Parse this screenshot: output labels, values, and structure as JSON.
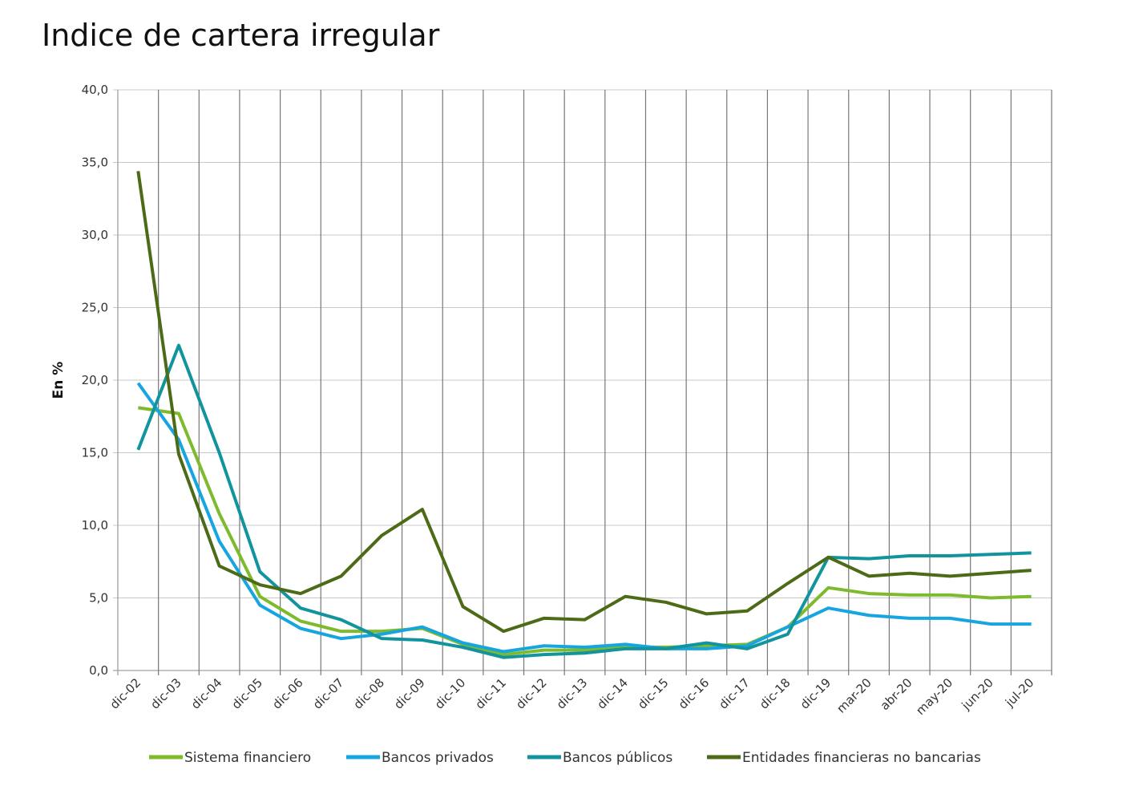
{
  "chart_data": {
    "type": "line",
    "title": "Indice de cartera irregular",
    "xlabel": "",
    "ylabel": "En %",
    "ylim": [
      0,
      40
    ],
    "yticks": [
      "0,0",
      "5,0",
      "10,0",
      "15,0",
      "20,0",
      "25,0",
      "30,0",
      "35,0",
      "40,0"
    ],
    "grid": "horizontal and vertical",
    "legend_position": "bottom",
    "categories": [
      "dic-02",
      "dic-03",
      "dic-04",
      "dic-05",
      "dic-06",
      "dic-07",
      "dic-08",
      "dic-09",
      "dic-10",
      "dic-11",
      "dic-12",
      "dic-13",
      "dic-14",
      "dic-15",
      "dic-16",
      "dic-17",
      "dic-18",
      "dic-19",
      "mar-20",
      "abr-20",
      "may-20",
      "jun-20",
      "jul-20"
    ],
    "series": [
      {
        "name": "Sistema financiero",
        "color": "#7dbb2c",
        "values": [
          18.1,
          17.7,
          10.8,
          5.1,
          3.4,
          2.7,
          2.7,
          2.9,
          1.8,
          1.1,
          1.4,
          1.4,
          1.6,
          1.6,
          1.7,
          1.8,
          3.0,
          5.7,
          5.3,
          5.2,
          5.2,
          5.0,
          5.1
        ]
      },
      {
        "name": "Bancos privados",
        "color": "#17a5e0",
        "values": [
          19.8,
          15.9,
          8.9,
          4.5,
          2.9,
          2.2,
          2.5,
          3.0,
          1.9,
          1.3,
          1.7,
          1.6,
          1.8,
          1.5,
          1.5,
          1.7,
          3.0,
          4.3,
          3.8,
          3.6,
          3.6,
          3.2,
          3.2
        ]
      },
      {
        "name": "Bancos públicos",
        "color": "#12949f",
        "values": [
          15.2,
          22.4,
          15.0,
          6.8,
          4.3,
          3.5,
          2.2,
          2.1,
          1.6,
          0.9,
          1.1,
          1.2,
          1.5,
          1.5,
          1.9,
          1.5,
          2.5,
          7.8,
          7.7,
          7.9,
          7.9,
          8.0,
          8.1
        ]
      },
      {
        "name": "Entidades financieras no bancarias",
        "color": "#4d6b17",
        "values": [
          34.4,
          14.9,
          7.2,
          5.9,
          5.3,
          6.5,
          9.3,
          11.1,
          4.4,
          2.7,
          3.6,
          3.5,
          5.1,
          4.7,
          3.9,
          4.1,
          6.0,
          7.8,
          6.5,
          6.7,
          6.5,
          6.7,
          6.9
        ]
      }
    ]
  }
}
